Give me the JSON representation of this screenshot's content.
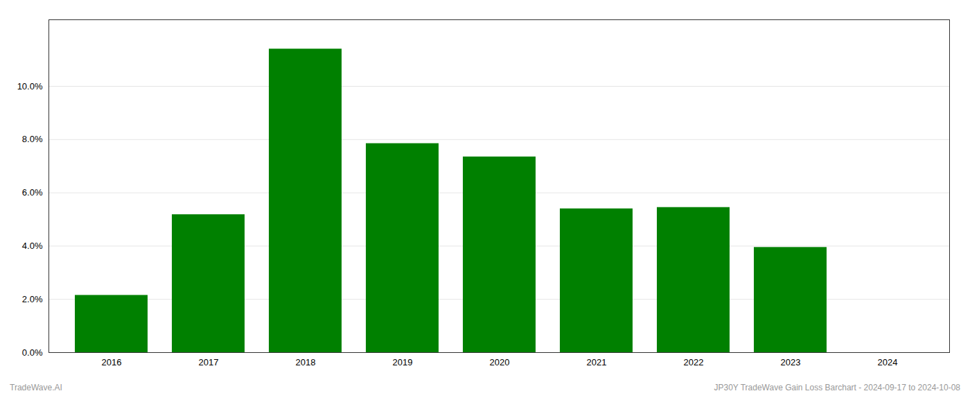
{
  "chart_data": {
    "type": "bar",
    "categories": [
      "2016",
      "2017",
      "2018",
      "2019",
      "2020",
      "2021",
      "2022",
      "2023",
      "2024"
    ],
    "values": [
      0.0215,
      0.0518,
      0.114,
      0.0785,
      0.0735,
      0.054,
      0.0545,
      0.0395,
      0.0
    ],
    "color": "#008000",
    "ylim": [
      0,
      0.125
    ],
    "yticks": [
      {
        "value": 0.0,
        "label": "0.0%"
      },
      {
        "value": 0.02,
        "label": "2.0%"
      },
      {
        "value": 0.04,
        "label": "4.0%"
      },
      {
        "value": 0.06,
        "label": "6.0%"
      },
      {
        "value": 0.08,
        "label": "8.0%"
      },
      {
        "value": 0.1,
        "label": "10.0%"
      }
    ],
    "grid": true,
    "annotations": [
      "TradeWave.AI",
      "JP30Y TradeWave Gain Loss Barchart - 2024-09-17 to 2024-10-08"
    ]
  }
}
